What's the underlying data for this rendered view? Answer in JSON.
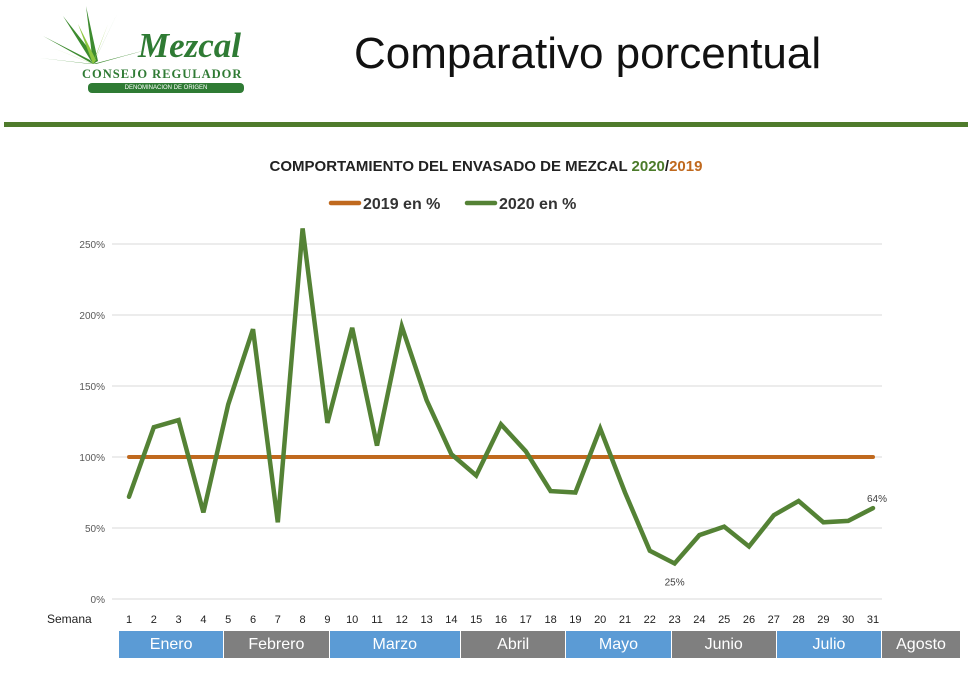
{
  "header": {
    "page_title": "Comparativo porcentual",
    "logo": {
      "word": "Mezcal",
      "subtitle": "CONSEJO REGULADOR",
      "band_text": "DENOMINACION DE ORIGEN"
    }
  },
  "colors": {
    "series_2019": "#c0691e",
    "series_2020": "#548235",
    "divider": "#4f7b2c",
    "month_blue": "#5b9bd5",
    "month_gray": "#7f7f7f"
  },
  "chart_data": {
    "type": "line",
    "title": "COMPORTAMIENTO DEL ENVASADO DE MEZCAL",
    "title_parts": [
      "COMPORTAMIENTO DEL ENVASADO DE MEZCAL ",
      "2020",
      "/",
      "2019"
    ],
    "xlabel": "Semana",
    "ylabel": "",
    "x": [
      1,
      2,
      3,
      4,
      5,
      6,
      7,
      8,
      9,
      10,
      11,
      12,
      13,
      14,
      15,
      16,
      17,
      18,
      19,
      20,
      21,
      22,
      23,
      24,
      25,
      26,
      27,
      28,
      29,
      30,
      31
    ],
    "series": [
      {
        "name": "2019 en %",
        "values": [
          100,
          100,
          100,
          100,
          100,
          100,
          100,
          100,
          100,
          100,
          100,
          100,
          100,
          100,
          100,
          100,
          100,
          100,
          100,
          100,
          100,
          100,
          100,
          100,
          100,
          100,
          100,
          100,
          100,
          100,
          100
        ]
      },
      {
        "name": "2020 en %",
        "values": [
          72,
          121,
          126,
          61,
          137,
          190,
          54,
          261,
          124,
          191,
          108,
          192,
          140,
          102,
          87,
          123,
          104,
          76,
          75,
          120,
          75,
          34,
          25,
          45,
          51,
          37,
          59,
          69,
          54,
          55,
          64
        ]
      }
    ],
    "ylim": [
      0,
      250
    ],
    "yticks": [
      "0%",
      "50%",
      "100%",
      "150%",
      "200%",
      "250%"
    ],
    "ytick_values": [
      0,
      50,
      100,
      150,
      200,
      250
    ],
    "grid": true,
    "legend_position": "top",
    "annotations": [
      {
        "x": 23,
        "series": "2020 en %",
        "label": "25%"
      },
      {
        "x": 31,
        "series": "2020 en %",
        "label": "64%"
      }
    ],
    "months": [
      {
        "name": "Enero",
        "weeks": 4,
        "color": "blue"
      },
      {
        "name": "Febrero",
        "weeks": 4,
        "color": "gray"
      },
      {
        "name": "Marzo",
        "weeks": 5,
        "color": "blue"
      },
      {
        "name": "Abril",
        "weeks": 4,
        "color": "gray"
      },
      {
        "name": "Mayo",
        "weeks": 4,
        "color": "blue"
      },
      {
        "name": "Junio",
        "weeks": 4,
        "color": "gray"
      },
      {
        "name": "Julio",
        "weeks": 4,
        "color": "blue"
      },
      {
        "name": "Agosto",
        "weeks": 3,
        "color": "gray"
      }
    ]
  }
}
